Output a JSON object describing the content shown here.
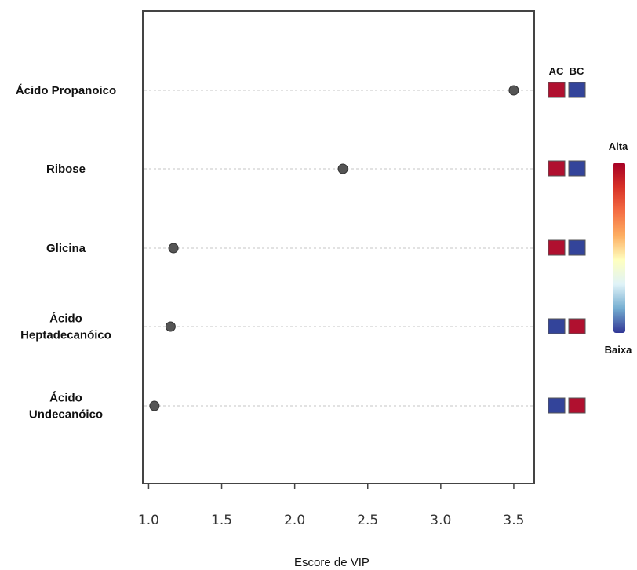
{
  "chart_data": {
    "type": "scatter",
    "xlabel": "Escore de VIP",
    "xlim": [
      0.96,
      3.64
    ],
    "x_ticks": [
      "1.0",
      "1.5",
      "2.0",
      "2.5",
      "3.0",
      "3.5"
    ],
    "grid": "horizontal-dotted",
    "categories": [
      [
        "Ácido Propanoico"
      ],
      [
        "Ribose"
      ],
      [
        "Glicina"
      ],
      [
        "Ácido",
        "Heptadecanóico"
      ],
      [
        "Ácido",
        "Undecanóico"
      ]
    ],
    "values": [
      3.5,
      2.33,
      1.17,
      1.15,
      1.04
    ],
    "heatmap": {
      "columns": [
        "AC",
        "BC"
      ],
      "levels": [
        [
          "high",
          "low"
        ],
        [
          "high",
          "low"
        ],
        [
          "high",
          "low"
        ],
        [
          "low",
          "high"
        ],
        [
          "low",
          "high"
        ]
      ]
    },
    "color_legend": {
      "high_label": "Alta",
      "low_label": "Baixa"
    },
    "colors": {
      "point": "#555555",
      "high": "#b0102f",
      "low": "#33449a",
      "scale": [
        "#313695",
        "#74add1",
        "#e0f3f8",
        "#ffffbf",
        "#fdae61",
        "#f46d43",
        "#d73027",
        "#a50026"
      ]
    }
  }
}
